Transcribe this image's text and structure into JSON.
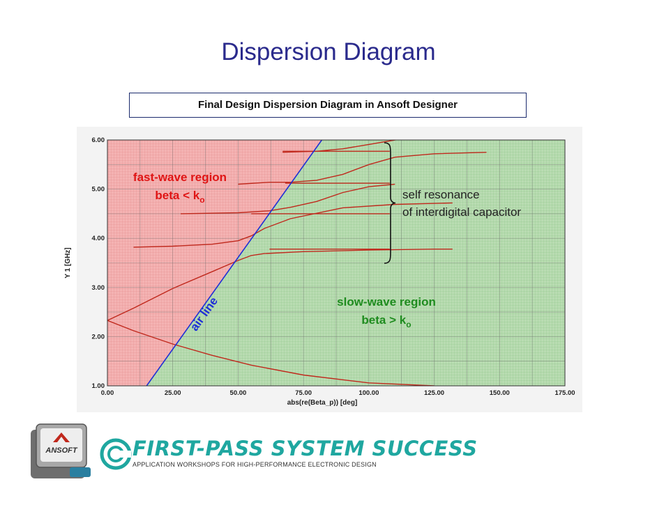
{
  "slide": {
    "title": "Dispersion Diagram",
    "caption": "Final Design Dispersion Diagram in Ansoft Designer"
  },
  "footer": {
    "logo_text": "ANSOFT",
    "banner_title": "FIRST-PASS SYSTEM SUCCESS",
    "banner_subtitle": "APPLICATION WORKSHOPS FOR HIGH-PERFORMANCE ELECTRONIC DESIGN"
  },
  "chart_data": {
    "type": "line",
    "xlabel": "abs(re(Beta_p)) [deg]",
    "ylabel": "Y 1 [GHz]",
    "xlim": [
      0,
      175
    ],
    "ylim": [
      1,
      6
    ],
    "xticks": [
      "0.00",
      "25.00",
      "50.00",
      "75.00",
      "100.00",
      "125.00",
      "150.00",
      "175.00"
    ],
    "yticks": [
      "1.00",
      "2.00",
      "3.00",
      "4.00",
      "5.00",
      "6.00"
    ],
    "grid": true,
    "colors": {
      "fast_region": "#f4b3b3",
      "slow_region": "#b9dcb2",
      "curve": "#c0281c",
      "air_line": "#1f2fd6",
      "fast_label": "#e01515",
      "slow_label": "#1f8c1f",
      "annotation": "#222222"
    },
    "regions": {
      "fast": {
        "label": "fast-wave region",
        "sublabel": "beta < k",
        "subscript": "o"
      },
      "slow": {
        "label": "slow-wave region",
        "sublabel": "beta > k",
        "subscript": "o"
      }
    },
    "air_line": {
      "label": "air line",
      "x": [
        15,
        82
      ],
      "y": [
        1.0,
        6.0
      ]
    },
    "annotation": {
      "line1": "self resonance",
      "line2": "of interdigital capacitor"
    },
    "series": [
      {
        "x": [
          0,
          10,
          25,
          40,
          55,
          75,
          100,
          125
        ],
        "y": [
          2.33,
          2.12,
          1.85,
          1.62,
          1.42,
          1.22,
          1.06,
          1.0
        ]
      },
      {
        "x": [
          0,
          10,
          25,
          40,
          50,
          55,
          60,
          75,
          100,
          125,
          132
        ],
        "y": [
          2.33,
          2.58,
          2.98,
          3.32,
          3.55,
          3.65,
          3.69,
          3.73,
          3.76,
          3.78,
          3.78
        ]
      },
      {
        "x": [
          10,
          25,
          40,
          50,
          55,
          60,
          70,
          90,
          110,
          132
        ],
        "y": [
          3.82,
          3.84,
          3.88,
          3.95,
          4.05,
          4.2,
          4.4,
          4.62,
          4.69,
          4.72
        ]
      },
      {
        "x": [
          28,
          50,
          62,
          70,
          80,
          90,
          100,
          110
        ],
        "y": [
          4.5,
          4.52,
          4.56,
          4.63,
          4.75,
          4.93,
          5.05,
          5.1
        ]
      },
      {
        "x": [
          50,
          62,
          70,
          80,
          90,
          100,
          110,
          125,
          145
        ],
        "y": [
          5.1,
          5.14,
          5.14,
          5.18,
          5.3,
          5.5,
          5.65,
          5.72,
          5.75
        ]
      },
      {
        "x": [
          67,
          80,
          90,
          100,
          110,
          115
        ],
        "y": [
          5.75,
          5.77,
          5.82,
          5.91,
          6.0,
          6.05
        ]
      },
      {
        "x": [
          62,
          108
        ],
        "y": [
          3.78,
          3.78
        ]
      },
      {
        "x": [
          55,
          108
        ],
        "y": [
          4.5,
          4.5
        ]
      },
      {
        "x": [
          68,
          108
        ],
        "y": [
          5.12,
          5.12
        ]
      },
      {
        "x": [
          67,
          108
        ],
        "y": [
          5.77,
          5.77
        ]
      }
    ]
  }
}
